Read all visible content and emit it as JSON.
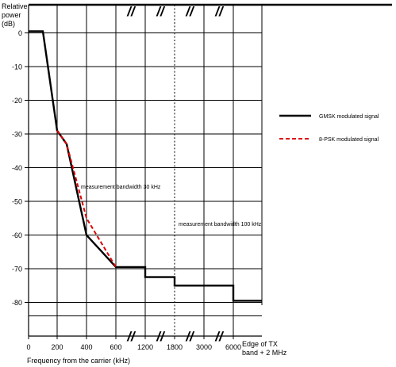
{
  "chart_data": {
    "type": "line",
    "ylabel_lines": [
      "Relative",
      "power",
      "(dB)"
    ],
    "xlabel": "Frequency from the carrier (kHz)",
    "x_tick_labels": [
      "0",
      "200",
      "400",
      "600",
      "1200",
      "1800",
      "3000",
      "6000"
    ],
    "x_edge_label_lines": [
      "Edge of TX",
      "band + 2 MHz"
    ],
    "y_tick_labels": [
      "0",
      "-10",
      "-20",
      "-30",
      "-40",
      "-50",
      "-60",
      "-70",
      "-80"
    ],
    "y_range": [
      -90,
      5
    ],
    "break_mark": "//",
    "grid": true,
    "legend_position": "right",
    "annotations": [
      "measurement bandwidth 30 kHz",
      "measurement bandwidth 100 kHz"
    ],
    "series": [
      {
        "name": "GMSK modulated signal",
        "color": "#000000",
        "style": "solid",
        "points": [
          [
            "0",
            0.5
          ],
          [
            "100",
            0.5
          ],
          [
            "200",
            -29
          ],
          [
            "250",
            -33
          ],
          [
            "400",
            -60
          ],
          [
            "600",
            -69.5
          ],
          [
            "1200",
            -69.5
          ],
          [
            "1200",
            -72.5
          ],
          [
            "1800",
            -72.5
          ],
          [
            "1800",
            -75
          ],
          [
            "6000",
            -75
          ],
          [
            "6000",
            -79.5
          ],
          [
            "edge",
            -79.5
          ]
        ]
      },
      {
        "name": "8-PSK modulated signal",
        "color": "#dd0000",
        "style": "dashed",
        "points": [
          [
            "200",
            -29
          ],
          [
            "250",
            -33
          ],
          [
            "400",
            -55
          ],
          [
            "600",
            -69.5
          ]
        ]
      }
    ]
  }
}
